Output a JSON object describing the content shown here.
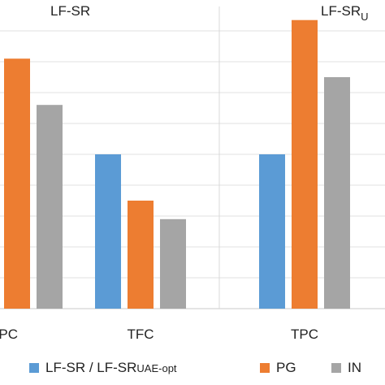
{
  "chart_data": {
    "type": "bar",
    "panels": [
      {
        "title": "LF-SR",
        "categories": [
          "TPC",
          "TFC"
        ]
      },
      {
        "title": "LF-SR",
        "title_sub": "U",
        "categories": [
          "TPC"
        ]
      }
    ],
    "categories": [
      "TPC",
      "TFC",
      "TPC"
    ],
    "series": [
      {
        "name": "LF-SR / LF-SR",
        "name_sub": "UAE-opt",
        "color": "#5b9bd5",
        "values": [
          null,
          100,
          100
        ]
      },
      {
        "name": "PG",
        "color": "#ed7d31",
        "values": [
          162,
          70,
          187
        ]
      },
      {
        "name": "IN",
        "color": "#a5a5a5",
        "values": [
          132,
          58,
          150
        ]
      }
    ],
    "ylim": [
      0,
      200
    ],
    "grid": true,
    "legend_position": "bottom"
  }
}
